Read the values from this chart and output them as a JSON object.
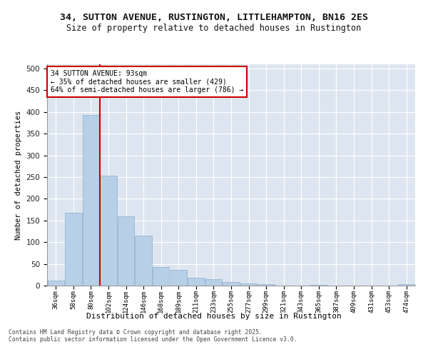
{
  "title": "34, SUTTON AVENUE, RUSTINGTON, LITTLEHAMPTON, BN16 2ES",
  "subtitle": "Size of property relative to detached houses in Rustington",
  "xlabel": "Distribution of detached houses by size in Rustington",
  "ylabel": "Number of detached properties",
  "categories": [
    "36sqm",
    "58sqm",
    "80sqm",
    "102sqm",
    "124sqm",
    "146sqm",
    "168sqm",
    "189sqm",
    "211sqm",
    "233sqm",
    "255sqm",
    "277sqm",
    "299sqm",
    "321sqm",
    "343sqm",
    "365sqm",
    "387sqm",
    "409sqm",
    "431sqm",
    "453sqm",
    "474sqm"
  ],
  "values": [
    12,
    168,
    393,
    253,
    160,
    115,
    43,
    37,
    18,
    14,
    8,
    5,
    4,
    0,
    0,
    2,
    0,
    0,
    0,
    0,
    3
  ],
  "bar_color": "#b8cfe8",
  "bar_edge_color": "#8aaecc",
  "vline_x_index": 2.5,
  "vline_color": "#cc0000",
  "annotation_text": "34 SUTTON AVENUE: 93sqm\n← 35% of detached houses are smaller (429)\n64% of semi-detached houses are larger (786) →",
  "annotation_box_color": "#ffffff",
  "annotation_box_edge": "#cc0000",
  "plot_bg_color": "#dde6f0",
  "fig_bg_color": "#ffffff",
  "grid_color": "#ffffff",
  "ylim": [
    0,
    510
  ],
  "yticks": [
    0,
    50,
    100,
    150,
    200,
    250,
    300,
    350,
    400,
    450,
    500
  ],
  "footer": "Contains HM Land Registry data © Crown copyright and database right 2025.\nContains public sector information licensed under the Open Government Licence v3.0."
}
